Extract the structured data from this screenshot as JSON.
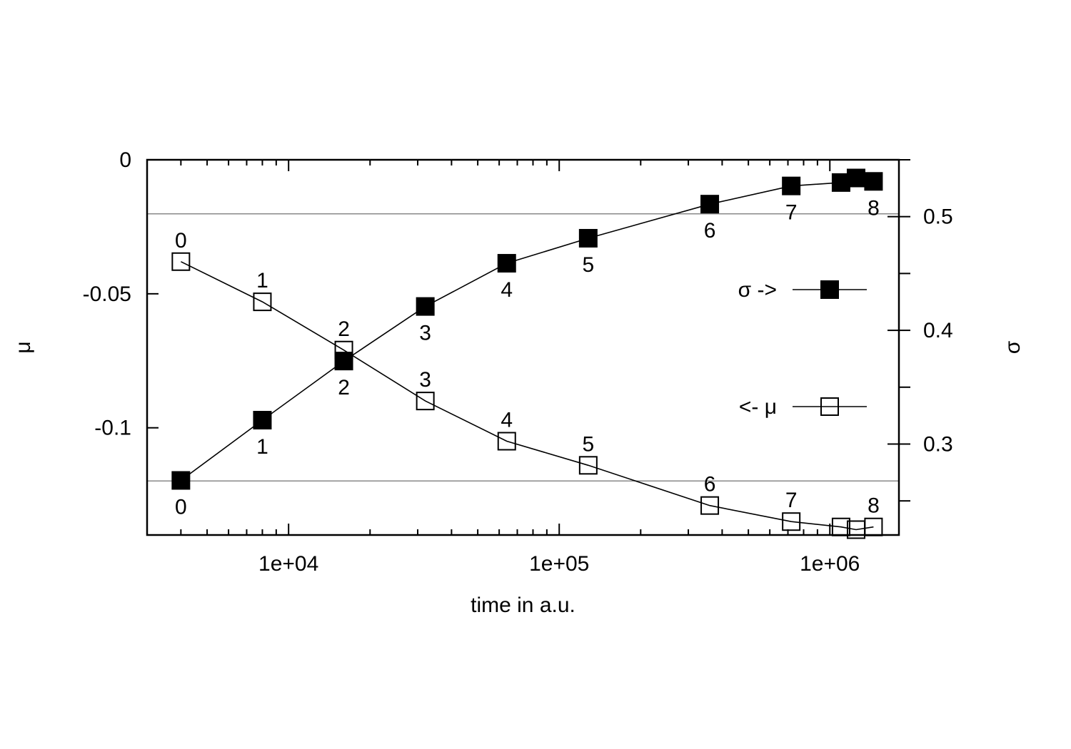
{
  "chart_data": {
    "type": "line",
    "xlabel": "time in a.u.",
    "ylabel": "μ",
    "y2label": "σ",
    "xscale": "log",
    "xlim": [
      3000,
      1800000
    ],
    "ylim": [
      -0.14,
      0
    ],
    "y2lim": [
      0.22,
      0.55
    ],
    "x_ticks": [
      {
        "value": 10000,
        "label": "1e+04"
      },
      {
        "value": 100000,
        "label": "1e+05"
      },
      {
        "value": 1000000,
        "label": "1e+06"
      }
    ],
    "y_ticks": [
      {
        "value": 0,
        "label": "0"
      },
      {
        "value": -0.05,
        "label": "-0.05"
      },
      {
        "value": -0.1,
        "label": "-0.1"
      }
    ],
    "y2_ticks": [
      {
        "value": 0.5,
        "label": "0.5"
      },
      {
        "value": 0.4,
        "label": "0.4"
      },
      {
        "value": 0.3,
        "label": "0.3"
      }
    ],
    "reference_lines": [
      {
        "axis": "y2",
        "value": 0.5025
      },
      {
        "axis": "y2",
        "value": 0.2675
      }
    ],
    "legend": {
      "position": "right"
    },
    "series": [
      {
        "name": "σ ->",
        "axis": "y2",
        "marker": "filled-square",
        "x": [
          4000,
          8000,
          16000,
          32000,
          64000,
          128000,
          360000,
          720000,
          1100000,
          1250000,
          1450000
        ],
        "values": [
          0.268,
          0.321,
          0.373,
          0.421,
          0.459,
          0.481,
          0.511,
          0.527,
          0.53,
          0.534,
          0.531
        ],
        "point_labels": [
          "0",
          "1",
          "2",
          "3",
          "4",
          "5",
          "6",
          "7",
          "",
          "",
          "8"
        ]
      },
      {
        "name": "<- μ",
        "axis": "y",
        "marker": "open-square",
        "x": [
          4000,
          8000,
          16000,
          32000,
          64000,
          128000,
          360000,
          720000,
          1100000,
          1250000,
          1450000
        ],
        "values": [
          -0.038,
          -0.053,
          -0.071,
          -0.09,
          -0.105,
          -0.114,
          -0.129,
          -0.135,
          -0.137,
          -0.138,
          -0.137
        ],
        "point_labels": [
          "0",
          "1",
          "2",
          "3",
          "4",
          "5",
          "6",
          "7",
          "",
          "",
          "8"
        ]
      }
    ]
  }
}
